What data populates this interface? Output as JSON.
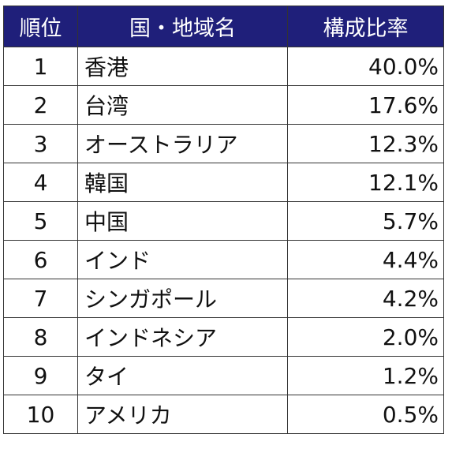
{
  "table": {
    "headers": {
      "rank": "順位",
      "name": "国・地域名",
      "ratio": "構成比率"
    },
    "rows": [
      {
        "rank": "1",
        "name": "香港",
        "ratio": "40.0%"
      },
      {
        "rank": "2",
        "name": "台湾",
        "ratio": "17.6%"
      },
      {
        "rank": "3",
        "name": "オーストラリア",
        "ratio": "12.3%"
      },
      {
        "rank": "4",
        "name": "韓国",
        "ratio": "12.1%"
      },
      {
        "rank": "5",
        "name": "中国",
        "ratio": "5.7%"
      },
      {
        "rank": "6",
        "name": "インド",
        "ratio": "4.4%"
      },
      {
        "rank": "7",
        "name": "シンガポール",
        "ratio": "4.2%"
      },
      {
        "rank": "8",
        "name": "インドネシア",
        "ratio": "2.0%"
      },
      {
        "rank": "9",
        "name": "タイ",
        "ratio": "1.2%"
      },
      {
        "rank": "10",
        "name": "アメリカ",
        "ratio": "0.5%"
      }
    ],
    "header_bg": "#1f1f7a",
    "header_fg": "#ffffff"
  }
}
